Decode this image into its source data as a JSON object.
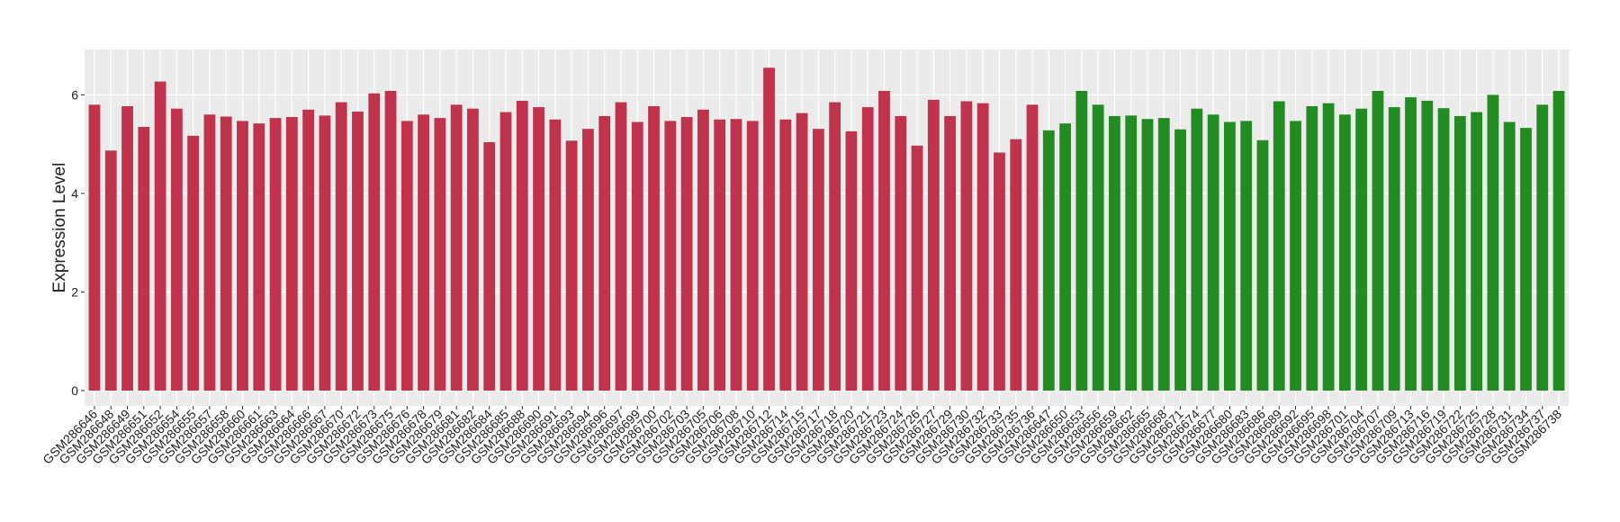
{
  "chart_data": {
    "type": "bar",
    "y_label": "Expression Level",
    "categories": [
      "GSM286646",
      "GSM286648",
      "GSM286649",
      "GSM286651",
      "GSM286652",
      "GSM286654",
      "GSM286655",
      "GSM286657",
      "GSM286658",
      "GSM286660",
      "GSM286661",
      "GSM286663",
      "GSM286664",
      "GSM286666",
      "GSM286667",
      "GSM286670",
      "GSM286672",
      "GSM286673",
      "GSM286675",
      "GSM286676",
      "GSM286678",
      "GSM286679",
      "GSM286681",
      "GSM286682",
      "GSM286684",
      "GSM286685",
      "GSM286688",
      "GSM286690",
      "GSM286691",
      "GSM286693",
      "GSM286694",
      "GSM286696",
      "GSM286697",
      "GSM286699",
      "GSM286700",
      "GSM286702",
      "GSM286703",
      "GSM286705",
      "GSM286706",
      "GSM286708",
      "GSM286710",
      "GSM286712",
      "GSM286714",
      "GSM286715",
      "GSM286717",
      "GSM286718",
      "GSM286720",
      "GSM286721",
      "GSM286723",
      "GSM286724",
      "GSM286726",
      "GSM286727",
      "GSM286729",
      "GSM286730",
      "GSM286732",
      "GSM286733",
      "GSM286735",
      "GSM286736",
      "GSM286647",
      "GSM286650",
      "GSM286653",
      "GSM286656",
      "GSM286659",
      "GSM286662",
      "GSM286665",
      "GSM286668",
      "GSM286671",
      "GSM286674",
      "GSM286677",
      "GSM286680",
      "GSM286683",
      "GSM286686",
      "GSM286689",
      "GSM286692",
      "GSM286695",
      "GSM286698",
      "GSM286701",
      "GSM286704",
      "GSM286707",
      "GSM286709",
      "GSM286713",
      "GSM286716",
      "GSM286719",
      "GSM286722",
      "GSM286725",
      "GSM286728",
      "GSM286731",
      "GSM286734",
      "GSM286737",
      "GSM286738"
    ],
    "values": [
      5.8,
      4.87,
      5.77,
      5.35,
      6.27,
      5.72,
      5.17,
      5.6,
      5.56,
      5.47,
      5.42,
      5.53,
      5.55,
      5.7,
      5.58,
      5.85,
      5.66,
      6.03,
      6.08,
      5.47,
      5.6,
      5.53,
      5.8,
      5.72,
      5.04,
      5.65,
      5.88,
      5.75,
      5.5,
      5.07,
      5.31,
      5.57,
      5.85,
      5.45,
      5.77,
      5.47,
      5.55,
      5.7,
      5.5,
      5.51,
      5.47,
      6.55,
      5.5,
      5.63,
      5.31,
      5.85,
      5.26,
      5.75,
      6.08,
      5.57,
      4.97,
      5.9,
      5.57,
      5.87,
      5.83,
      4.83,
      5.1,
      5.8,
      5.28,
      5.42,
      6.08,
      5.8,
      5.57,
      5.58,
      5.51,
      5.53,
      5.3,
      5.72,
      5.6,
      5.45,
      5.47,
      5.08,
      5.87,
      5.47,
      5.77,
      5.83,
      5.6,
      5.72,
      6.08,
      5.75,
      5.95,
      5.88,
      5.73,
      5.57,
      5.65,
      6.0,
      5.45,
      5.33,
      5.8,
      6.08
    ],
    "colors": [
      "#c0334d",
      "#c0334d",
      "#c0334d",
      "#c0334d",
      "#c0334d",
      "#c0334d",
      "#c0334d",
      "#c0334d",
      "#c0334d",
      "#c0334d",
      "#c0334d",
      "#c0334d",
      "#c0334d",
      "#c0334d",
      "#c0334d",
      "#c0334d",
      "#c0334d",
      "#c0334d",
      "#c0334d",
      "#c0334d",
      "#c0334d",
      "#c0334d",
      "#c0334d",
      "#c0334d",
      "#c0334d",
      "#c0334d",
      "#c0334d",
      "#c0334d",
      "#c0334d",
      "#c0334d",
      "#c0334d",
      "#c0334d",
      "#c0334d",
      "#c0334d",
      "#c0334d",
      "#c0334d",
      "#c0334d",
      "#c0334d",
      "#c0334d",
      "#c0334d",
      "#c0334d",
      "#c0334d",
      "#c0334d",
      "#c0334d",
      "#c0334d",
      "#c0334d",
      "#c0334d",
      "#c0334d",
      "#c0334d",
      "#c0334d",
      "#c0334d",
      "#c0334d",
      "#c0334d",
      "#c0334d",
      "#c0334d",
      "#c0334d",
      "#c0334d",
      "#c0334d",
      "#228b22",
      "#228b22",
      "#228b22",
      "#228b22",
      "#228b22",
      "#228b22",
      "#228b22",
      "#228b22",
      "#228b22",
      "#228b22",
      "#228b22",
      "#228b22",
      "#228b22",
      "#228b22",
      "#228b22",
      "#228b22",
      "#228b22",
      "#228b22",
      "#228b22",
      "#228b22",
      "#228b22",
      "#228b22",
      "#228b22",
      "#228b22",
      "#228b22",
      "#228b22",
      "#228b22",
      "#228b22",
      "#228b22",
      "#228b22",
      "#228b22",
      "#228b22"
    ],
    "ylim": [
      -0.31,
      6.92
    ],
    "yticks": [
      0,
      2,
      4,
      6
    ],
    "grid": true
  }
}
